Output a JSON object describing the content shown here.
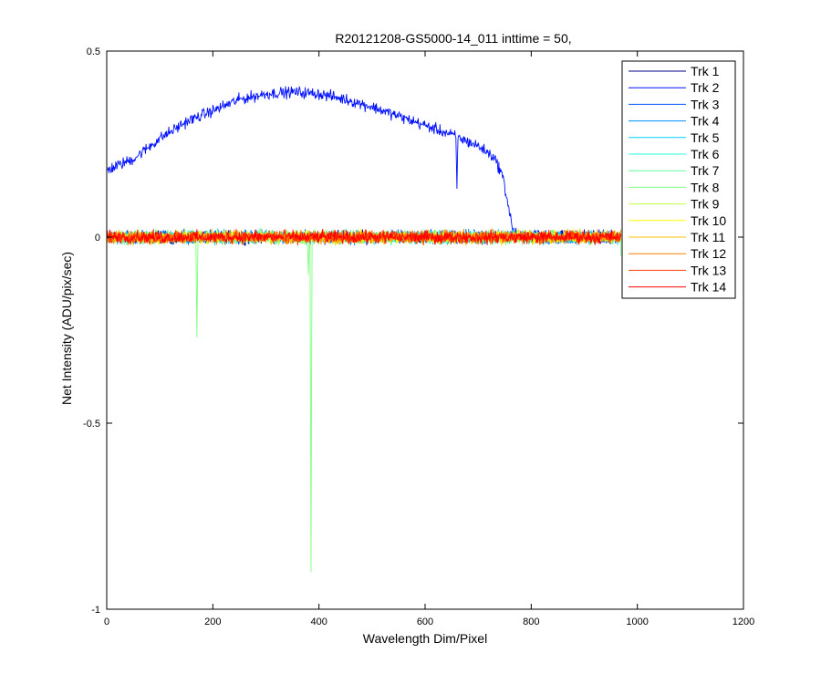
{
  "chart_data": {
    "type": "line",
    "title": "R20121208-GS5000-14_011 inttime = 50,",
    "xlabel": "Wavelength Dim/Pixel",
    "ylabel": "Net Intensity (ADU/pix/sec)",
    "xlim": [
      0,
      1200
    ],
    "ylim": [
      -1,
      0.5
    ],
    "xticks": [
      0,
      200,
      400,
      600,
      800,
      1000,
      1200
    ],
    "yticks": [
      -1,
      -0.5,
      0,
      0.5
    ],
    "xtick_labels": [
      "0",
      "200",
      "400",
      "600",
      "800",
      "1000",
      "1200"
    ],
    "ytick_labels": [
      "-1",
      "-0.5",
      "0",
      "0.5"
    ],
    "grid": false,
    "legend_position": "top-right",
    "n_points": 970,
    "noise_amplitude": 0.012,
    "series": [
      {
        "name": "Trk 1",
        "color": "#00008F",
        "peak": 0.0
      },
      {
        "name": "Trk 2",
        "color": "#0010FF",
        "peak": 0.39,
        "profile": [
          [
            0,
            0.18
          ],
          [
            50,
            0.21
          ],
          [
            100,
            0.265
          ],
          [
            150,
            0.31
          ],
          [
            200,
            0.34
          ],
          [
            250,
            0.37
          ],
          [
            300,
            0.385
          ],
          [
            350,
            0.39
          ],
          [
            400,
            0.385
          ],
          [
            450,
            0.37
          ],
          [
            500,
            0.35
          ],
          [
            550,
            0.325
          ],
          [
            600,
            0.3
          ],
          [
            650,
            0.275
          ],
          [
            700,
            0.245
          ],
          [
            730,
            0.215
          ],
          [
            745,
            0.17
          ],
          [
            755,
            0.1
          ],
          [
            765,
            0.02
          ],
          [
            780,
            0.0
          ],
          [
            970,
            0.0
          ]
        ],
        "spikes": [
          [
            660,
            0.13
          ]
        ]
      },
      {
        "name": "Trk 3",
        "color": "#0050FF",
        "peak": 0.0
      },
      {
        "name": "Trk 4",
        "color": "#0090FF",
        "peak": 0.0
      },
      {
        "name": "Trk 5",
        "color": "#00D0FF",
        "peak": 0.0
      },
      {
        "name": "Trk 6",
        "color": "#20FFDF",
        "peak": 0.0
      },
      {
        "name": "Trk 7",
        "color": "#60FF9F",
        "peak": 0.0
      },
      {
        "name": "Trk 8",
        "color": "#80FF80",
        "peak": 0.0,
        "spikes": [
          [
            170,
            -0.27
          ],
          [
            380,
            -0.1
          ],
          [
            385,
            -0.9
          ],
          [
            970,
            -0.1
          ]
        ]
      },
      {
        "name": "Trk 9",
        "color": "#BFFF40",
        "peak": 0.0
      },
      {
        "name": "Trk 10",
        "color": "#FFFF00",
        "peak": 0.0
      },
      {
        "name": "Trk 11",
        "color": "#FFBF00",
        "peak": 0.0
      },
      {
        "name": "Trk 12",
        "color": "#FF8000",
        "peak": 0.0
      },
      {
        "name": "Trk 13",
        "color": "#FF4000",
        "peak": 0.0
      },
      {
        "name": "Trk 14",
        "color": "#FF0000",
        "peak": 0.0
      }
    ]
  }
}
